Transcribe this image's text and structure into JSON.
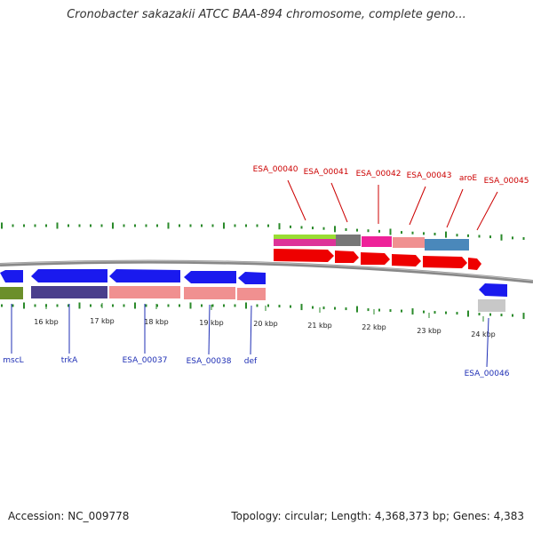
{
  "title": "Cronobacter sakazakii ATCC BAA-894 chromosome, complete geno...",
  "footer": {
    "accession": "Accession: NC_009778",
    "topology": "Topology: circular; Length: 4,368,373 bp; Genes: 4,383"
  },
  "colors": {
    "forward_label": "#cc0000",
    "reverse_label": "#1f2fb5",
    "cds": "#1a1aee",
    "cds_forward": "#ee0000",
    "backbone": "#888888",
    "gc_ticks": "#2a8a2a"
  },
  "ruler": {
    "ticks": [
      {
        "label": "16 kbp"
      },
      {
        "label": "17 kbp"
      },
      {
        "label": "18 kbp"
      },
      {
        "label": "19 kbp"
      },
      {
        "label": "20 kbp"
      },
      {
        "label": "21 kbp"
      },
      {
        "label": "22 kbp"
      },
      {
        "label": "23 kbp"
      },
      {
        "label": "24 kbp"
      }
    ]
  },
  "forward_genes": [
    {
      "name": "ESA_00040"
    },
    {
      "name": "ESA_00041"
    },
    {
      "name": "ESA_00042"
    },
    {
      "name": "ESA_00043"
    },
    {
      "name": "aroE"
    },
    {
      "name": "ESA_00045"
    }
  ],
  "reverse_genes": [
    {
      "name": "mscL"
    },
    {
      "name": "trkA"
    },
    {
      "name": "ESA_00037"
    },
    {
      "name": "ESA_00038"
    },
    {
      "name": "def"
    },
    {
      "name": "ESA_00046"
    }
  ]
}
